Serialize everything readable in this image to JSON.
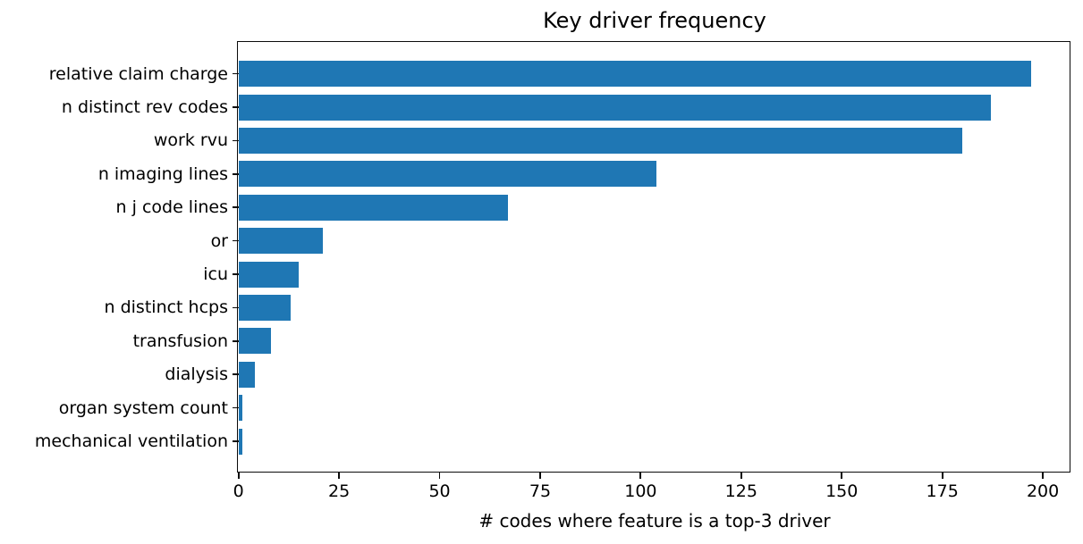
{
  "chart_data": {
    "type": "bar",
    "orientation": "horizontal",
    "title": "Key driver frequency",
    "xlabel": "# codes where feature is a top-3 driver",
    "ylabel": "",
    "categories": [
      "relative claim charge",
      "n distinct rev codes",
      "work rvu",
      "n imaging lines",
      "n j code lines",
      "or",
      "icu",
      "n distinct hcps",
      "transfusion",
      "dialysis",
      "organ system count",
      "mechanical ventilation"
    ],
    "values": [
      197,
      187,
      180,
      104,
      67,
      21,
      15,
      13,
      8,
      4,
      1,
      1
    ],
    "xticks": [
      0,
      25,
      50,
      75,
      100,
      125,
      150,
      175,
      200
    ],
    "xlim": [
      0,
      206.85
    ],
    "bar_color": "#1f77b4",
    "grid": false,
    "legend": null
  }
}
